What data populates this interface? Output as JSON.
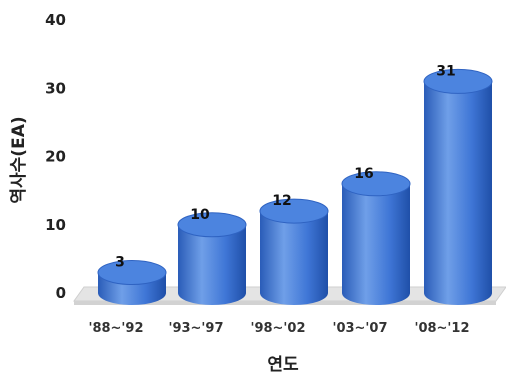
{
  "chart_data": {
    "type": "bar",
    "style": "3d-cylinder",
    "categories": [
      "'88~'92",
      "'93~'97",
      "'98~'02",
      "'03~'07",
      "'08~'12"
    ],
    "values": [
      3,
      10,
      12,
      16,
      31
    ],
    "data_labels": [
      "3",
      "10",
      "12",
      "16",
      "31"
    ],
    "xlabel": "연도",
    "ylabel": "역사수(EA)",
    "ylim": [
      0,
      40
    ],
    "yticks": [
      "0",
      "10",
      "20",
      "30",
      "40"
    ],
    "grid": false,
    "legend": "none",
    "colors": {
      "bar_light": "#6f9fe8",
      "bar_mid": "#3f76d6",
      "bar_dark": "#1f4fa8",
      "top_face": "#4c84df",
      "floor": "#e4e4e4"
    }
  }
}
